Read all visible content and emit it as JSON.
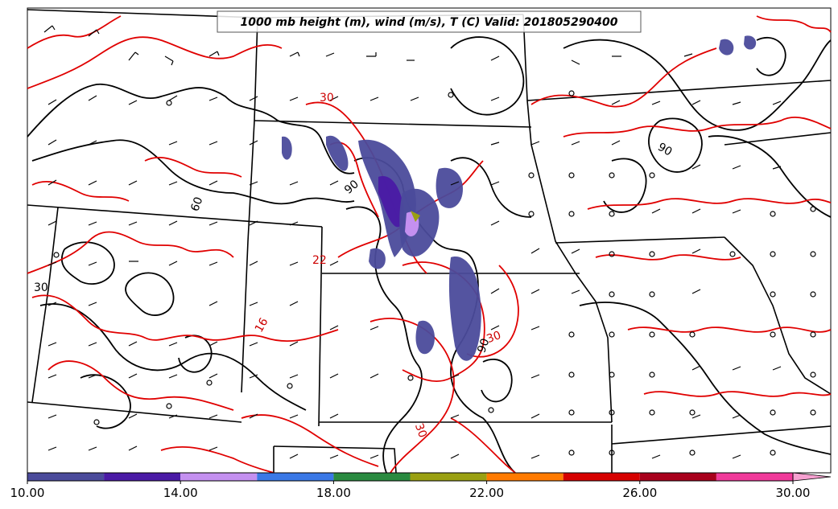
{
  "map": {
    "title": "1000 mb height (m), wind (m/s), T (C) Valid: 201805290400"
  },
  "colorbar": {
    "ticks": [
      {
        "label": "10.00",
        "value": 10
      },
      {
        "label": "14.00",
        "value": 14
      },
      {
        "label": "18.00",
        "value": 18
      },
      {
        "label": "22.00",
        "value": 22
      },
      {
        "label": "26.00",
        "value": 26
      },
      {
        "label": "30.00",
        "value": 30
      }
    ],
    "min": 10,
    "max": 31,
    "bins": [
      {
        "from": 10,
        "to": 12,
        "color": "#4b4b9b"
      },
      {
        "from": 12,
        "to": 14,
        "color": "#4a1aa5"
      },
      {
        "from": 14,
        "to": 16,
        "color": "#c490f0"
      },
      {
        "from": 16,
        "to": 18,
        "color": "#3a78e6"
      },
      {
        "from": 18,
        "to": 20,
        "color": "#2a8a40"
      },
      {
        "from": 20,
        "to": 22,
        "color": "#9aa012"
      },
      {
        "from": 22,
        "to": 24,
        "color": "#ff7a00"
      },
      {
        "from": 24,
        "to": 26,
        "color": "#d60000"
      },
      {
        "from": 26,
        "to": 28,
        "color": "#a8001c"
      },
      {
        "from": 28,
        "to": 30,
        "color": "#f03a9a"
      }
    ],
    "extend_color": "#f6a0d0"
  },
  "contour_labels": [
    {
      "text": "30",
      "color": "red"
    },
    {
      "text": "90",
      "color": "black"
    },
    {
      "text": "60",
      "color": "black"
    },
    {
      "text": "90",
      "color": "black"
    },
    {
      "text": "30",
      "color": "black"
    },
    {
      "text": "22",
      "color": "red"
    },
    {
      "text": "16",
      "color": "red"
    },
    {
      "text": "30",
      "color": "red"
    },
    {
      "text": "30",
      "color": "red"
    },
    {
      "text": "90",
      "color": "black"
    }
  ]
}
